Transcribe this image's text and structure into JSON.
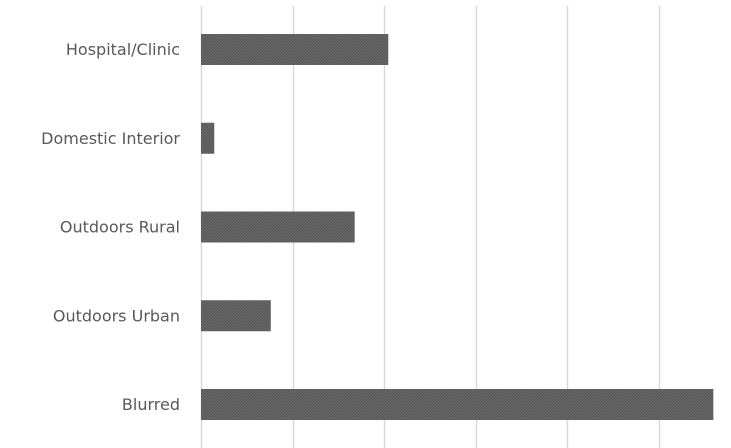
{
  "chart_data": {
    "type": "bar",
    "orientation": "horizontal",
    "categories": [
      "Hospital/Clinic",
      "Domestic Interior",
      "Outdoors Rural",
      "Outdoors Urban",
      "Blurred"
    ],
    "values": [
      0.212,
      0.015,
      0.174,
      0.079,
      0.58
    ],
    "xlim": [
      0,
      0.6
    ],
    "grid": true,
    "bar_color": "#595959",
    "grid_color": "#d9d9d9",
    "label_color": "#595959"
  }
}
